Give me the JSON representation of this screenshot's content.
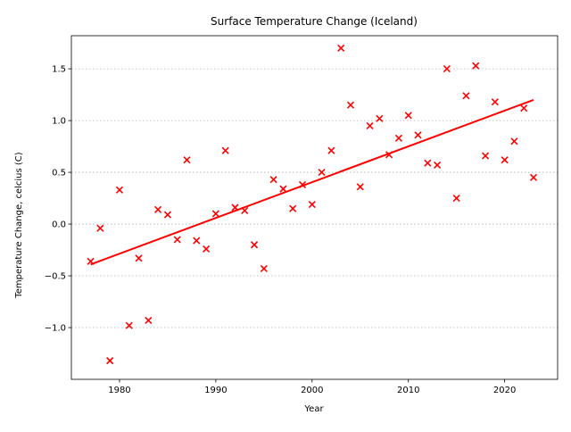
{
  "chart_data": {
    "type": "scatter",
    "title": "Surface Temperature Change (Iceland)",
    "xlabel": "Year",
    "ylabel": "Temperature Change, celcius (C)",
    "xlim": [
      1975,
      2025.5
    ],
    "ylim": [
      -1.5,
      1.82
    ],
    "xticks": [
      1980,
      1990,
      2000,
      2010,
      2020
    ],
    "yticks": [
      -1.0,
      -0.5,
      0.0,
      0.5,
      1.0,
      1.5
    ],
    "ytick_labels": [
      "−1.0",
      "−0.5",
      "0.0",
      "0.5",
      "1.0",
      "1.5"
    ],
    "grid": "y-dotted",
    "marker": "x",
    "marker_color": "#ff0000",
    "trend_color": "#ff0000",
    "points": [
      {
        "x": 1977,
        "y": -0.36
      },
      {
        "x": 1978,
        "y": -0.04
      },
      {
        "x": 1979,
        "y": -1.32
      },
      {
        "x": 1980,
        "y": 0.33
      },
      {
        "x": 1981,
        "y": -0.98
      },
      {
        "x": 1982,
        "y": -0.33
      },
      {
        "x": 1983,
        "y": -0.93
      },
      {
        "x": 1984,
        "y": 0.14
      },
      {
        "x": 1985,
        "y": 0.09
      },
      {
        "x": 1986,
        "y": -0.15
      },
      {
        "x": 1987,
        "y": 0.62
      },
      {
        "x": 1988,
        "y": -0.16
      },
      {
        "x": 1989,
        "y": -0.24
      },
      {
        "x": 1990,
        "y": 0.1
      },
      {
        "x": 1991,
        "y": 0.71
      },
      {
        "x": 1992,
        "y": 0.16
      },
      {
        "x": 1993,
        "y": 0.13
      },
      {
        "x": 1994,
        "y": -0.2
      },
      {
        "x": 1995,
        "y": -0.43
      },
      {
        "x": 1996,
        "y": 0.43
      },
      {
        "x": 1997,
        "y": 0.34
      },
      {
        "x": 1998,
        "y": 0.15
      },
      {
        "x": 1999,
        "y": 0.38
      },
      {
        "x": 2000,
        "y": 0.19
      },
      {
        "x": 2001,
        "y": 0.5
      },
      {
        "x": 2002,
        "y": 0.71
      },
      {
        "x": 2003,
        "y": 1.7
      },
      {
        "x": 2004,
        "y": 1.15
      },
      {
        "x": 2005,
        "y": 0.36
      },
      {
        "x": 2006,
        "y": 0.95
      },
      {
        "x": 2007,
        "y": 1.02
      },
      {
        "x": 2008,
        "y": 0.67
      },
      {
        "x": 2009,
        "y": 0.83
      },
      {
        "x": 2010,
        "y": 1.05
      },
      {
        "x": 2011,
        "y": 0.86
      },
      {
        "x": 2012,
        "y": 0.59
      },
      {
        "x": 2013,
        "y": 0.57
      },
      {
        "x": 2014,
        "y": 1.5
      },
      {
        "x": 2015,
        "y": 0.25
      },
      {
        "x": 2016,
        "y": 1.24
      },
      {
        "x": 2017,
        "y": 1.53
      },
      {
        "x": 2018,
        "y": 0.66
      },
      {
        "x": 2019,
        "y": 1.18
      },
      {
        "x": 2020,
        "y": 0.62
      },
      {
        "x": 2021,
        "y": 0.8
      },
      {
        "x": 2022,
        "y": 1.12
      },
      {
        "x": 2023,
        "y": 0.45
      }
    ],
    "trend_line": [
      {
        "x": 1977,
        "y": -0.39
      },
      {
        "x": 2023,
        "y": 1.2
      }
    ]
  }
}
